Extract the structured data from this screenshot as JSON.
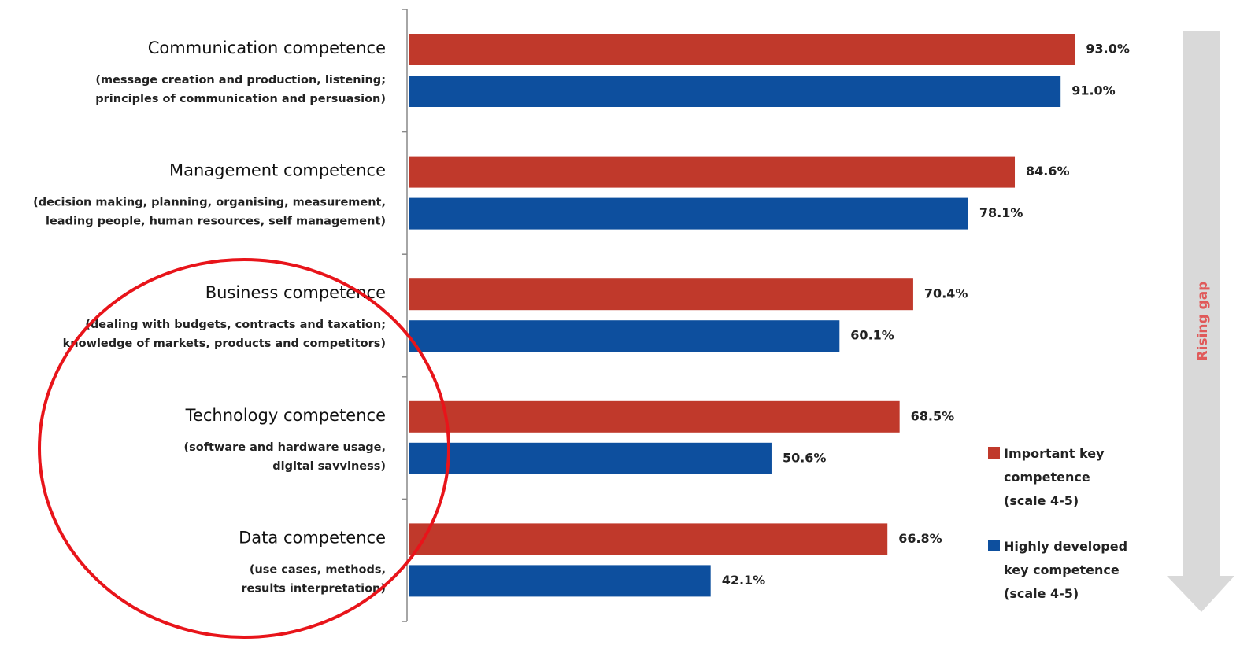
{
  "chart_data": {
    "type": "bar",
    "orientation": "horizontal",
    "categories": [
      "Communication competence",
      "Management competence",
      "Business competence",
      "Technology competence",
      "Data competence"
    ],
    "category_notes": [
      [
        "(message creation and production, listening;",
        "principles of communication and persuasion)"
      ],
      [
        "(decision making, planning, organising, measurement,",
        "leading people, human resources, self management)"
      ],
      [
        "(dealing with budgets, contracts and taxation;",
        "knowledge of markets, products and competitors)"
      ],
      [
        "(software and hardware usage,",
        "digital savviness)"
      ],
      [
        "(use cases, methods,",
        "results interpretation)"
      ]
    ],
    "series": [
      {
        "name": "Important key competence (scale 4-5)",
        "color": "#c0392b",
        "values": [
          93.0,
          84.6,
          70.4,
          68.5,
          66.8
        ],
        "value_labels": [
          "93.0%",
          "84.6%",
          "70.4%",
          "68.5%",
          "66.8%"
        ]
      },
      {
        "name": "Highly developed key competence (scale 4-5)",
        "color": "#0d4f9e",
        "values": [
          91.0,
          78.1,
          60.1,
          50.6,
          42.1
        ],
        "value_labels": [
          "91.0%",
          "78.1%",
          "60.1%",
          "50.6%",
          "42.1%"
        ]
      }
    ],
    "xlim": [
      0,
      100
    ],
    "annotation": "Rising gap"
  }
}
